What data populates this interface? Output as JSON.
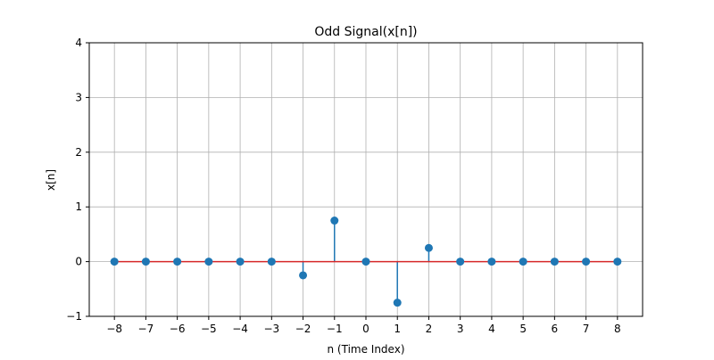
{
  "chart_data": {
    "type": "stem",
    "title": "Odd Signal(x[n])",
    "xlabel": "n (Time Index)",
    "ylabel": "x[n]",
    "x": [
      -8,
      -7,
      -6,
      -5,
      -4,
      -3,
      -2,
      -1,
      0,
      1,
      2,
      3,
      4,
      5,
      6,
      7,
      8
    ],
    "y": [
      0,
      0,
      0,
      0,
      0,
      0,
      -0.25,
      0.75,
      0,
      -0.75,
      0.25,
      0,
      0,
      0,
      0,
      0,
      0
    ],
    "xlim": [
      -8.8,
      8.8
    ],
    "ylim": [
      -1,
      4
    ],
    "xticks": [
      -8,
      -7,
      -6,
      -5,
      -4,
      -3,
      -2,
      -1,
      0,
      1,
      2,
      3,
      4,
      5,
      6,
      7,
      8
    ],
    "xtick_labels": [
      "−8",
      "−7",
      "−6",
      "−5",
      "−4",
      "−3",
      "−2",
      "−1",
      "0",
      "1",
      "2",
      "3",
      "4",
      "5",
      "6",
      "7",
      "8"
    ],
    "yticks": [
      -1,
      0,
      1,
      2,
      3,
      4
    ],
    "ytick_labels": [
      "−1",
      "0",
      "1",
      "2",
      "3",
      "4"
    ],
    "grid": true,
    "colors": {
      "marker": "#1f77b4",
      "stem": "#1f77b4",
      "baseline": "#d62728",
      "grid": "#b0b0b0"
    }
  }
}
